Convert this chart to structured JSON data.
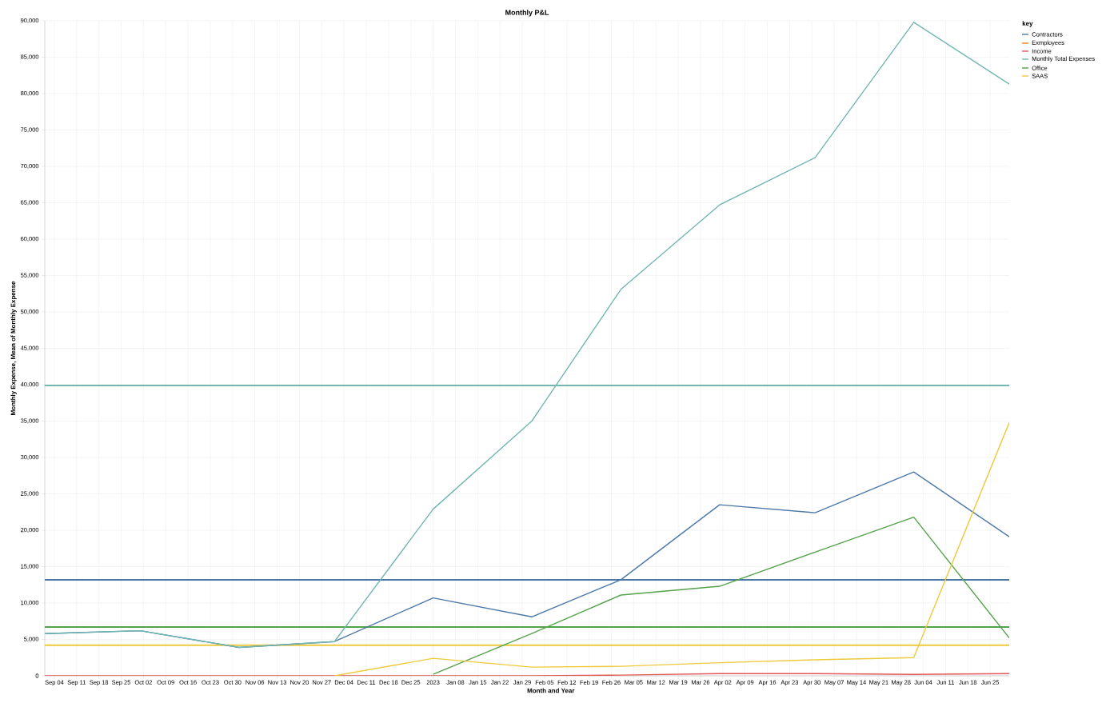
{
  "chart_data": {
    "type": "line",
    "title": "Monthly P&L",
    "xlabel": "Month and Year",
    "ylabel": "Monthly Expense, Mean of Monthly Expense",
    "legend_title": "key",
    "legend": "top right",
    "grid": true,
    "x": [
      "2022-09-01",
      "2022-10-01",
      "2022-11-01",
      "2022-12-01",
      "2023-01-01",
      "2023-02-01",
      "2023-03-01",
      "2023-04-01",
      "2023-05-01",
      "2023-06-01",
      "2023-07-01"
    ],
    "series": [
      {
        "name": "Contractors",
        "color": "#4c78a8",
        "values": [
          5800,
          6200,
          3900,
          4700,
          10700,
          8100,
          13200,
          23500,
          22400,
          28000,
          19100
        ]
      },
      {
        "name": "Exmployees",
        "color": "#f58518",
        "values": [
          null,
          null,
          null,
          null,
          null,
          null,
          null,
          null,
          null,
          null,
          null
        ]
      },
      {
        "name": "Income",
        "color": "#e45756",
        "values": [
          0,
          0,
          0,
          0,
          0,
          0,
          100,
          300,
          300,
          200,
          300
        ]
      },
      {
        "name": "Monthly Total Expenses",
        "color": "#72b7b2",
        "values": [
          5800,
          6200,
          3900,
          4700,
          22900,
          35000,
          53100,
          64700,
          71200,
          89800,
          81300
        ]
      },
      {
        "name": "Office",
        "color": "#54a24b",
        "values": [
          null,
          null,
          null,
          null,
          200,
          5800,
          11100,
          12300,
          17000,
          21800,
          5200
        ]
      },
      {
        "name": "SAAS",
        "color": "#eeca3b",
        "values": [
          null,
          null,
          null,
          0,
          2400,
          1200,
          1300,
          1800,
          2200,
          2500,
          34800
        ]
      }
    ],
    "ref_lines": [
      {
        "axis": "y",
        "value": 39900,
        "color": "#72b7b2"
      },
      {
        "axis": "y",
        "value": 13200,
        "color": "#4c78a8"
      },
      {
        "axis": "y",
        "value": 6700,
        "color": "#54a24b"
      },
      {
        "axis": "y",
        "value": 4200,
        "color": "#eeca3b"
      }
    ],
    "xlim": [
      "2022-09-01",
      "2023-07-01"
    ],
    "ylim": [
      0,
      90000
    ],
    "yticks": [
      {
        "value": 0,
        "label": "0"
      },
      {
        "value": 5000,
        "label": "5,000"
      },
      {
        "value": 10000,
        "label": "10,000"
      },
      {
        "value": 15000,
        "label": "15,000"
      },
      {
        "value": 20000,
        "label": "20,000"
      },
      {
        "value": 25000,
        "label": "25,000"
      },
      {
        "value": 30000,
        "label": "30,000"
      },
      {
        "value": 35000,
        "label": "35,000"
      },
      {
        "value": 40000,
        "label": "40,000"
      },
      {
        "value": 45000,
        "label": "45,000"
      },
      {
        "value": 50000,
        "label": "50,000"
      },
      {
        "value": 55000,
        "label": "55,000"
      },
      {
        "value": 60000,
        "label": "60,000"
      },
      {
        "value": 65000,
        "label": "65,000"
      },
      {
        "value": 70000,
        "label": "70,000"
      },
      {
        "value": 75000,
        "label": "75,000"
      },
      {
        "value": 80000,
        "label": "80,000"
      },
      {
        "value": 85000,
        "label": "85,000"
      },
      {
        "value": 90000,
        "label": "90,000"
      }
    ],
    "xticks": [
      {
        "value": "2022-09-04",
        "label": "Sep 04"
      },
      {
        "value": "2022-09-11",
        "label": "Sep 11"
      },
      {
        "value": "2022-09-18",
        "label": "Sep 18"
      },
      {
        "value": "2022-09-25",
        "label": "Sep 25"
      },
      {
        "value": "2022-10-02",
        "label": "Oct 02"
      },
      {
        "value": "2022-10-09",
        "label": "Oct 09"
      },
      {
        "value": "2022-10-16",
        "label": "Oct 16"
      },
      {
        "value": "2022-10-23",
        "label": "Oct 23"
      },
      {
        "value": "2022-10-30",
        "label": "Oct 30"
      },
      {
        "value": "2022-11-06",
        "label": "Nov 06"
      },
      {
        "value": "2022-11-13",
        "label": "Nov 13"
      },
      {
        "value": "2022-11-20",
        "label": "Nov 20"
      },
      {
        "value": "2022-11-27",
        "label": "Nov 27"
      },
      {
        "value": "2022-12-04",
        "label": "Dec 04"
      },
      {
        "value": "2022-12-11",
        "label": "Dec 11"
      },
      {
        "value": "2022-12-18",
        "label": "Dec 18"
      },
      {
        "value": "2022-12-25",
        "label": "Dec 25"
      },
      {
        "value": "2023-01-01",
        "label": "2023"
      },
      {
        "value": "2023-01-08",
        "label": "Jan 08"
      },
      {
        "value": "2023-01-15",
        "label": "Jan 15"
      },
      {
        "value": "2023-01-22",
        "label": "Jan 22"
      },
      {
        "value": "2023-01-29",
        "label": "Jan 29"
      },
      {
        "value": "2023-02-05",
        "label": "Feb 05"
      },
      {
        "value": "2023-02-12",
        "label": "Feb 12"
      },
      {
        "value": "2023-02-19",
        "label": "Feb 19"
      },
      {
        "value": "2023-02-26",
        "label": "Feb 26"
      },
      {
        "value": "2023-03-05",
        "label": "Mar 05"
      },
      {
        "value": "2023-03-12",
        "label": "Mar 12"
      },
      {
        "value": "2023-03-19",
        "label": "Mar 19"
      },
      {
        "value": "2023-03-26",
        "label": "Mar 26"
      },
      {
        "value": "2023-04-02",
        "label": "Apr 02"
      },
      {
        "value": "2023-04-09",
        "label": "Apr 09"
      },
      {
        "value": "2023-04-16",
        "label": "Apr 16"
      },
      {
        "value": "2023-04-23",
        "label": "Apr 23"
      },
      {
        "value": "2023-04-30",
        "label": "Apr 30"
      },
      {
        "value": "2023-05-07",
        "label": "May 07"
      },
      {
        "value": "2023-05-14",
        "label": "May 14"
      },
      {
        "value": "2023-05-21",
        "label": "May 21"
      },
      {
        "value": "2023-05-28",
        "label": "May 28"
      },
      {
        "value": "2023-06-04",
        "label": "Jun 04"
      },
      {
        "value": "2023-06-11",
        "label": "Jun 11"
      },
      {
        "value": "2023-06-18",
        "label": "Jun 18"
      },
      {
        "value": "2023-06-25",
        "label": "Jun 25"
      }
    ]
  }
}
